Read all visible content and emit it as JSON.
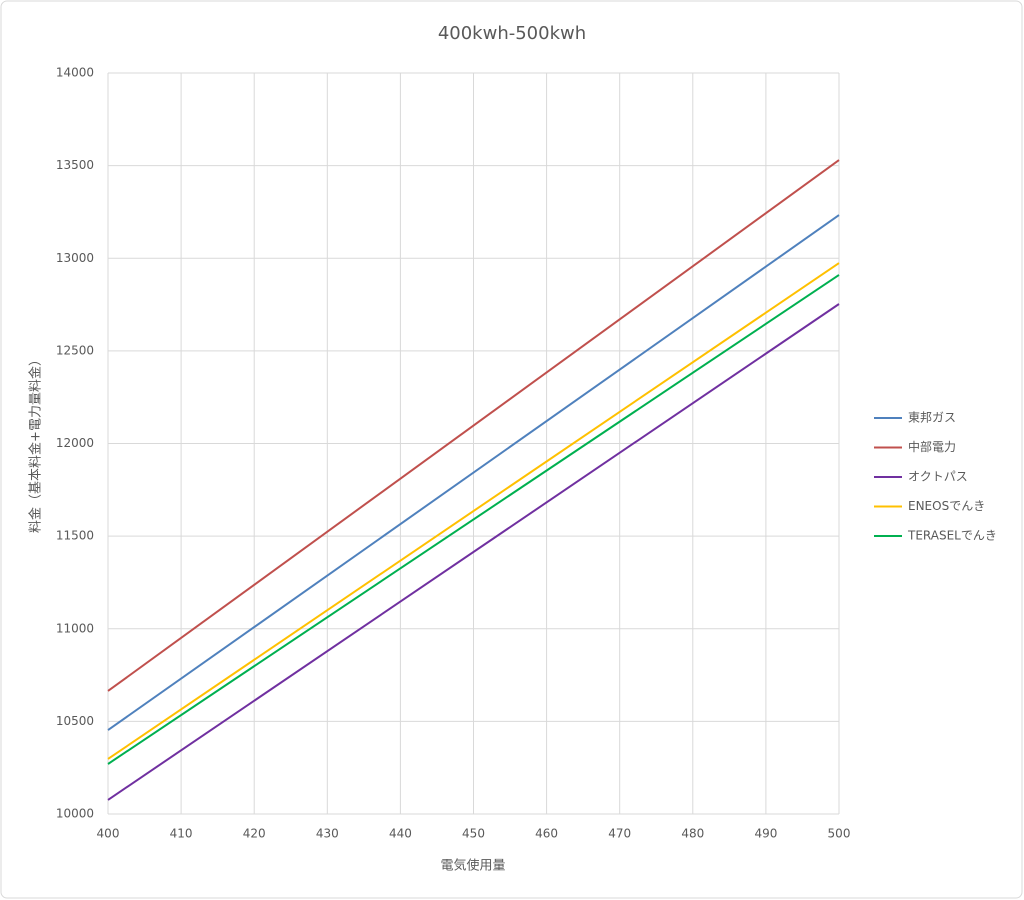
{
  "chart_data": {
    "type": "line",
    "title": "400kwh-500kwh",
    "x_label": "電気使用量",
    "y_label": "料金（基本料金+電力量料金）",
    "x": [
      400,
      500
    ],
    "series": [
      {
        "name": "東邦ガス",
        "color": "#4f81bd",
        "values": [
          10453,
          13233
        ]
      },
      {
        "name": "中部電力",
        "color": "#c0504d",
        "values": [
          10664,
          13530
        ]
      },
      {
        "name": "オクトパス",
        "color": "#7030a0",
        "values": [
          10076,
          12753
        ]
      },
      {
        "name": "ENEOSでんき",
        "color": "#ffc000",
        "values": [
          10297,
          12974
        ]
      },
      {
        "name": "TERASELでんき",
        "color": "#00b050",
        "values": [
          10270,
          12910
        ]
      }
    ],
    "xlim": [
      400,
      500
    ],
    "xticks": [
      400,
      410,
      420,
      430,
      440,
      450,
      460,
      470,
      480,
      490,
      500
    ],
    "ylim": [
      10000,
      14000
    ],
    "yticks": [
      10000,
      10500,
      11000,
      11500,
      12000,
      12500,
      13000,
      13500,
      14000
    ],
    "grid": true,
    "legend": "right"
  }
}
